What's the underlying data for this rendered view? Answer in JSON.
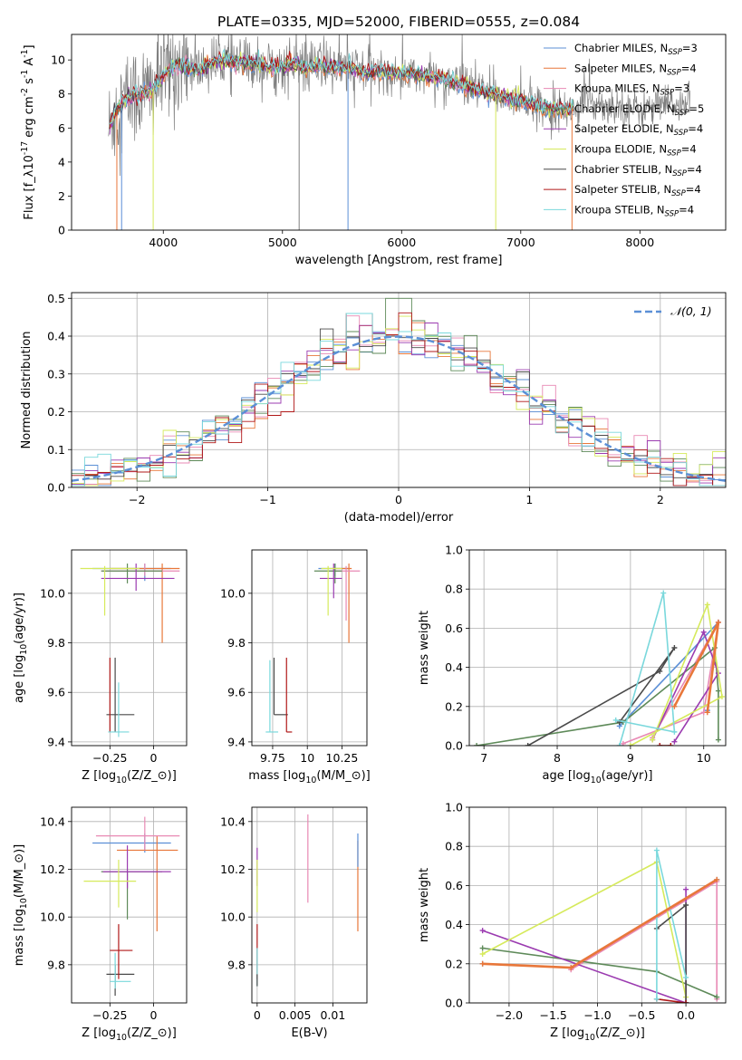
{
  "figure": {
    "title": "PLATE=0335, MJD=52000, FIBERID=0555, z=0.084"
  },
  "colors": {
    "Chabrier MILES": "#5b8fd6",
    "Salpeter MILES": "#e8773a",
    "Kroupa MILES": "#e889b4",
    "Chabrier ELODIE": "#5e8a59",
    "Salpeter ELODIE": "#9b3bb0",
    "Kroupa ELODIE": "#d6ea5c",
    "Chabrier STELIB": "#4a4a4a",
    "Salpeter STELIB": "#b01818",
    "Kroupa STELIB": "#7ad8dc",
    "data": "#7f7f7f"
  },
  "chart_data": [
    {
      "id": "spectrum",
      "type": "line",
      "xlabel": "wavelength [Angstrom, rest frame]",
      "ylabel": "Flux [f_λ10^{-17} erg cm^{-2} s^{-1} A^{-1}]",
      "xlim": [
        3230,
        8720
      ],
      "ylim": [
        0,
        11.5
      ],
      "xticks": [
        4000,
        5000,
        6000,
        7000,
        8000
      ],
      "yticks": [
        0,
        2,
        4,
        6,
        8,
        10
      ],
      "legend_position": "right",
      "series": [
        {
          "name": "Chabrier MILES",
          "sub": "SSP",
          "n": "=3"
        },
        {
          "name": "Salpeter MILES",
          "sub": "SSP",
          "n": "=4"
        },
        {
          "name": "Kroupa MILES",
          "sub": "SSP",
          "n": "=3"
        },
        {
          "name": "Chabrier ELODIE",
          "sub": "SSP",
          "n": "=5"
        },
        {
          "name": "Salpeter ELODIE",
          "sub": "SSP",
          "n": "=4"
        },
        {
          "name": "Kroupa ELODIE",
          "sub": "SSP",
          "n": "=4"
        },
        {
          "name": "Chabrier STELIB",
          "sub": "SSP",
          "n": "=4"
        },
        {
          "name": "Salpeter STELIB",
          "sub": "SSP",
          "n": "=4"
        },
        {
          "name": "Kroupa STELIB",
          "sub": "SSP",
          "n": "=4"
        }
      ],
      "continuum": {
        "x": [
          3550,
          3600,
          3700,
          3800,
          3900,
          4000,
          4100,
          4200,
          4300,
          4400,
          4500,
          4600,
          4700,
          4800,
          4900,
          5000,
          5100,
          5200,
          5300,
          5400,
          5500,
          5600,
          5800,
          6000,
          6200,
          6400,
          6600,
          6800,
          7000,
          7200,
          7400,
          7600,
          7800,
          8000,
          8200,
          8400
        ],
        "y": [
          6.0,
          7.0,
          7.8,
          8.0,
          8.2,
          9.1,
          9.7,
          9.6,
          9.4,
          9.8,
          10.0,
          9.9,
          9.7,
          9.8,
          9.6,
          9.6,
          9.8,
          9.5,
          9.7,
          9.6,
          9.5,
          9.4,
          9.3,
          9.2,
          9.1,
          8.8,
          8.3,
          7.9,
          7.6,
          7.2,
          7.1,
          7.5,
          7.3,
          7.1,
          7.3,
          7.5
        ]
      }
    },
    {
      "id": "residuals",
      "type": "line",
      "xlabel": "(data-model)/error",
      "ylabel": "Normed distribution",
      "xlim": [
        -2.5,
        2.5
      ],
      "ylim": [
        0,
        0.515
      ],
      "xticks": [
        -2,
        -1,
        0,
        1,
        2
      ],
      "yticks": [
        0.0,
        0.1,
        0.2,
        0.3,
        0.4,
        0.5
      ],
      "legend_position": "top-right",
      "legend_label": "𝒩(0, 1)",
      "normal": {
        "mean": 0,
        "sigma": 1
      },
      "histogram_bin_width": 0.1,
      "histogram_peaks": [
        0.46,
        0.5,
        0.46,
        0.42
      ]
    },
    {
      "id": "age_vs_Z",
      "type": "scatter",
      "xlabel": "Z [log_{10}(Z/Z_⊙)]",
      "ylabel": "age  [log_{10}(age/yr)]",
      "xlim": [
        -0.47,
        0.19
      ],
      "ylim": [
        9.385,
        10.175
      ],
      "xticks": [
        -0.25,
        0.0
      ],
      "yticks": [
        9.4,
        9.6,
        9.8,
        10.0
      ],
      "points": [
        {
          "series": "Chabrier MILES",
          "x": -0.05,
          "y": 10.1,
          "xerr": [
            0.3,
            0.15
          ],
          "yerr": [
            0.05,
            0.02
          ]
        },
        {
          "series": "Salpeter MILES",
          "x": 0.05,
          "y": 10.1,
          "xerr": [
            0.3,
            0.1
          ],
          "yerr": [
            0.3,
            0.02
          ]
        },
        {
          "series": "Kroupa MILES",
          "x": -0.05,
          "y": 10.09,
          "xerr": [
            0.25,
            0.2
          ],
          "yerr": [
            0.02,
            0.03
          ]
        },
        {
          "series": "Chabrier ELODIE",
          "x": -0.15,
          "y": 10.09,
          "xerr": [
            0.15,
            0.2
          ],
          "yerr": [
            0.05,
            0.03
          ]
        },
        {
          "series": "Salpeter ELODIE",
          "x": -0.1,
          "y": 10.06,
          "xerr": [
            0.2,
            0.22
          ],
          "yerr": [
            0.05,
            0.06
          ]
        },
        {
          "series": "Kroupa ELODIE",
          "x": -0.28,
          "y": 10.1,
          "xerr": [
            0.14,
            0.2
          ],
          "yerr": [
            0.19,
            0.01
          ]
        },
        {
          "series": "Chabrier STELIB",
          "x": -0.22,
          "y": 9.51,
          "xerr": [
            0.05,
            0.11
          ],
          "yerr": [
            0.07,
            0.23
          ]
        },
        {
          "series": "Salpeter STELIB",
          "x": -0.25,
          "y": 9.44,
          "xerr": [
            0.0,
            0.0
          ],
          "yerr": [
            0.0,
            0.3
          ]
        },
        {
          "series": "Kroupa STELIB",
          "x": -0.2,
          "y": 9.44,
          "xerr": [
            0.06,
            0.06
          ],
          "yerr": [
            0.02,
            0.2
          ]
        }
      ]
    },
    {
      "id": "age_vs_mass",
      "type": "scatter",
      "xlabel": "mass [log_{10}(M/M_⊙)]",
      "ylabel": "",
      "xlim": [
        9.6,
        10.43
      ],
      "ylim": [
        9.385,
        10.175
      ],
      "xticks": [
        9.75,
        10.0,
        10.25
      ],
      "yticks": [
        9.4,
        9.6,
        9.8,
        10.0
      ],
      "points": [
        {
          "series": "Chabrier MILES",
          "x": 10.2,
          "y": 10.1,
          "xerr": [
            0.12,
            0.1
          ],
          "yerr": [
            0.03,
            0.02
          ]
        },
        {
          "series": "Salpeter MILES",
          "x": 10.3,
          "y": 10.1,
          "xerr": [
            0.12,
            0.02
          ],
          "yerr": [
            0.3,
            0.02
          ]
        },
        {
          "series": "Kroupa MILES",
          "x": 10.28,
          "y": 10.09,
          "xerr": [
            0.12,
            0.1
          ],
          "yerr": [
            0.2,
            0.02
          ]
        },
        {
          "series": "Chabrier ELODIE",
          "x": 10.2,
          "y": 10.09,
          "xerr": [
            0.15,
            0.05
          ],
          "yerr": [
            0.05,
            0.03
          ]
        },
        {
          "series": "Salpeter ELODIE",
          "x": 10.19,
          "y": 10.06,
          "xerr": [
            0.1,
            0.06
          ],
          "yerr": [
            0.08,
            0.06
          ]
        },
        {
          "series": "Kroupa ELODIE",
          "x": 10.15,
          "y": 10.1,
          "xerr": [
            0.05,
            0.1
          ],
          "yerr": [
            0.19,
            0.01
          ]
        },
        {
          "series": "Chabrier STELIB",
          "x": 9.76,
          "y": 9.51,
          "xerr": [
            0.0,
            0.1
          ],
          "yerr": [
            0.0,
            0.23
          ]
        },
        {
          "series": "Salpeter STELIB",
          "x": 9.85,
          "y": 9.44,
          "xerr": [
            0.0,
            0.04
          ],
          "yerr": [
            0.0,
            0.3
          ]
        },
        {
          "series": "Kroupa STELIB",
          "x": 9.73,
          "y": 9.44,
          "xerr": [
            0.03,
            0.06
          ],
          "yerr": [
            0.0,
            0.29
          ]
        }
      ]
    },
    {
      "id": "weight_vs_age",
      "type": "line",
      "xlabel": "age  [log_{10}(age/yr)]",
      "ylabel": "mass weight",
      "xlim": [
        6.8,
        10.3
      ],
      "ylim": [
        0,
        1.0
      ],
      "xticks": [
        7,
        8,
        9,
        10
      ],
      "yticks": [
        0.0,
        0.2,
        0.4,
        0.6,
        0.8,
        1.0
      ],
      "series": [
        {
          "name": "Chabrier MILES",
          "x": [
            8.85,
            10.2,
            10.05
          ],
          "y": [
            0.1,
            0.63,
            0.18
          ]
        },
        {
          "name": "Salpeter MILES",
          "x": [
            9.6,
            10.2,
            10.05
          ],
          "y": [
            0.2,
            0.63,
            0.17
          ]
        },
        {
          "name": "Kroupa MILES",
          "x": [
            9.3,
            10.2,
            10.0,
            8.9
          ],
          "y": [
            0.04,
            0.63,
            0.17,
            0.01
          ]
        },
        {
          "name": "Chabrier ELODIE",
          "x": [
            6.9,
            8.9,
            10.15,
            10.2,
            10.2
          ],
          "y": [
            0.0,
            0.12,
            0.5,
            0.28,
            0.03
          ]
        },
        {
          "name": "Salpeter ELODIE",
          "x": [
            9.3,
            10.0,
            10.2,
            9.6
          ],
          "y": [
            0.03,
            0.58,
            0.37,
            0.02
          ]
        },
        {
          "name": "Kroupa ELODIE",
          "x": [
            9.3,
            10.05,
            10.25,
            9.0
          ],
          "y": [
            0.03,
            0.72,
            0.25,
            0.0
          ]
        },
        {
          "name": "Chabrier STELIB",
          "x": [
            7.6,
            9.4,
            9.6,
            8.85
          ],
          "y": [
            0.0,
            0.38,
            0.5,
            0.12
          ]
        },
        {
          "name": "Salpeter STELIB",
          "x": [
            9.55,
            9.4
          ],
          "y": [
            0.0,
            0.0
          ]
        },
        {
          "name": "Kroupa STELIB",
          "x": [
            8.85,
            9.45,
            9.6,
            8.8
          ],
          "y": [
            0.0,
            0.78,
            0.07,
            0.13
          ]
        }
      ]
    },
    {
      "id": "mass_vs_Z",
      "type": "scatter",
      "xlabel": "Z [log_{10}(Z/Z_⊙)]",
      "ylabel": "mass [log_{10}(M/M_⊙)]",
      "xlim": [
        -0.47,
        0.19
      ],
      "ylim": [
        9.64,
        10.46
      ],
      "xticks": [
        -0.25,
        0.0
      ],
      "yticks": [
        9.8,
        10.0,
        10.2,
        10.4
      ],
      "points": [
        {
          "series": "Chabrier MILES",
          "x": -0.05,
          "y": 10.31,
          "xerr": [
            0.3,
            0.15
          ],
          "yerr": [
            0.04,
            0.04
          ]
        },
        {
          "series": "Salpeter MILES",
          "x": 0.02,
          "y": 10.28,
          "xerr": [
            0.23,
            0.12
          ],
          "yerr": [
            0.34,
            0.06
          ]
        },
        {
          "series": "Kroupa MILES",
          "x": -0.05,
          "y": 10.34,
          "xerr": [
            0.28,
            0.2
          ],
          "yerr": [
            0.06,
            0.08
          ]
        },
        {
          "series": "Chabrier ELODIE",
          "x": -0.15,
          "y": 10.19,
          "xerr": [
            0.15,
            0.2
          ],
          "yerr": [
            0.2,
            0.0
          ]
        },
        {
          "series": "Salpeter ELODIE",
          "x": -0.15,
          "y": 10.19,
          "xerr": [
            0.14,
            0.25
          ],
          "yerr": [
            0.07,
            0.11
          ]
        },
        {
          "series": "Kroupa ELODIE",
          "x": -0.2,
          "y": 10.15,
          "xerr": [
            0.2,
            0.1
          ],
          "yerr": [
            0.11,
            0.09
          ]
        },
        {
          "series": "Chabrier STELIB",
          "x": -0.22,
          "y": 9.76,
          "xerr": [
            0.05,
            0.11
          ],
          "yerr": [
            0.09,
            0.04
          ]
        },
        {
          "series": "Salpeter STELIB",
          "x": -0.2,
          "y": 9.86,
          "xerr": [
            0.05,
            0.08
          ],
          "yerr": [
            0.12,
            0.11
          ]
        },
        {
          "series": "Kroupa STELIB",
          "x": -0.22,
          "y": 9.73,
          "xerr": [
            0.03,
            0.09
          ],
          "yerr": [
            0.03,
            0.12
          ]
        }
      ]
    },
    {
      "id": "mass_vs_EBV",
      "type": "scatter",
      "xlabel": "E(B-V)",
      "ylabel": "",
      "xlim": [
        -0.0007,
        0.0145
      ],
      "ylim": [
        9.64,
        10.46
      ],
      "xticks": [
        0.0,
        0.005,
        0.01
      ],
      "yticks": [
        9.8,
        10.0,
        10.2,
        10.4
      ],
      "points": [
        {
          "series": "Salpeter MILES",
          "x": 0.0133,
          "y": 10.12,
          "xerr": [
            0,
            0
          ],
          "yerr": [
            0.18,
            0.2
          ]
        },
        {
          "series": "Chabrier MILES",
          "x": 0.0133,
          "y": 10.25,
          "xerr": [
            0,
            0
          ],
          "yerr": [
            0.04,
            0.1
          ]
        },
        {
          "series": "Kroupa MILES",
          "x": 0.0067,
          "y": 10.24,
          "xerr": [
            0,
            0
          ],
          "yerr": [
            0.18,
            0.19
          ]
        },
        {
          "series": "Salpeter ELODIE",
          "x": 0.0,
          "y": 10.2,
          "xerr": [
            0,
            0
          ],
          "yerr": [
            0.07,
            0.09
          ]
        },
        {
          "series": "Kroupa ELODIE",
          "x": 0.0,
          "y": 10.12,
          "xerr": [
            0,
            0
          ],
          "yerr": [
            0.1,
            0.12
          ]
        },
        {
          "series": "Salpeter STELIB",
          "x": 0.0,
          "y": 9.86,
          "xerr": [
            0,
            0
          ],
          "yerr": [
            0.12,
            0.11
          ]
        },
        {
          "series": "Kroupa STELIB",
          "x": 0.0,
          "y": 9.76,
          "xerr": [
            0,
            0
          ],
          "yerr": [
            0.05,
            0.11
          ]
        },
        {
          "series": "Chabrier STELIB",
          "x": 0.0,
          "y": 9.73,
          "xerr": [
            0,
            0
          ],
          "yerr": [
            0.02,
            0.03
          ]
        }
      ]
    },
    {
      "id": "weight_vs_Z",
      "type": "line",
      "xlabel": "Z [log_{10}(Z/Z_⊙)]",
      "ylabel": "mass weight",
      "xlim": [
        -2.45,
        0.45
      ],
      "ylim": [
        0,
        1.0
      ],
      "xticks": [
        -2.0,
        -1.5,
        -1.0,
        -0.5,
        0.0
      ],
      "yticks": [
        0.0,
        0.2,
        0.4,
        0.6,
        0.8,
        1.0
      ],
      "series": [
        {
          "name": "Chabrier MILES",
          "x": [
            -2.3,
            -1.3,
            0.35
          ],
          "y": [
            0.2,
            0.18,
            0.63
          ]
        },
        {
          "name": "Salpeter MILES",
          "x": [
            -2.3,
            -1.3,
            0.35
          ],
          "y": [
            0.2,
            0.18,
            0.63
          ]
        },
        {
          "name": "Kroupa MILES",
          "x": [
            -1.3,
            0.35,
            0.35
          ],
          "y": [
            0.17,
            0.62,
            0.02
          ]
        },
        {
          "name": "Chabrier ELODIE",
          "x": [
            -2.3,
            -0.33,
            0.35
          ],
          "y": [
            0.28,
            0.16,
            0.03
          ]
        },
        {
          "name": "Salpeter ELODIE",
          "x": [
            -2.3,
            0.0,
            0.0
          ],
          "y": [
            0.37,
            0.0,
            0.58
          ]
        },
        {
          "name": "Kroupa ELODIE",
          "x": [
            -2.3,
            -0.33,
            0.0
          ],
          "y": [
            0.25,
            0.72,
            0.03
          ]
        },
        {
          "name": "Chabrier STELIB",
          "x": [
            -0.33,
            0.0,
            0.0
          ],
          "y": [
            0.38,
            0.5,
            0.0
          ]
        },
        {
          "name": "Salpeter STELIB",
          "x": [
            -0.33,
            0.0
          ],
          "y": [
            0.02,
            0.0
          ]
        },
        {
          "name": "Kroupa STELIB",
          "x": [
            -0.33,
            -0.33,
            0.0
          ],
          "y": [
            0.02,
            0.78,
            0.13
          ]
        }
      ]
    }
  ]
}
